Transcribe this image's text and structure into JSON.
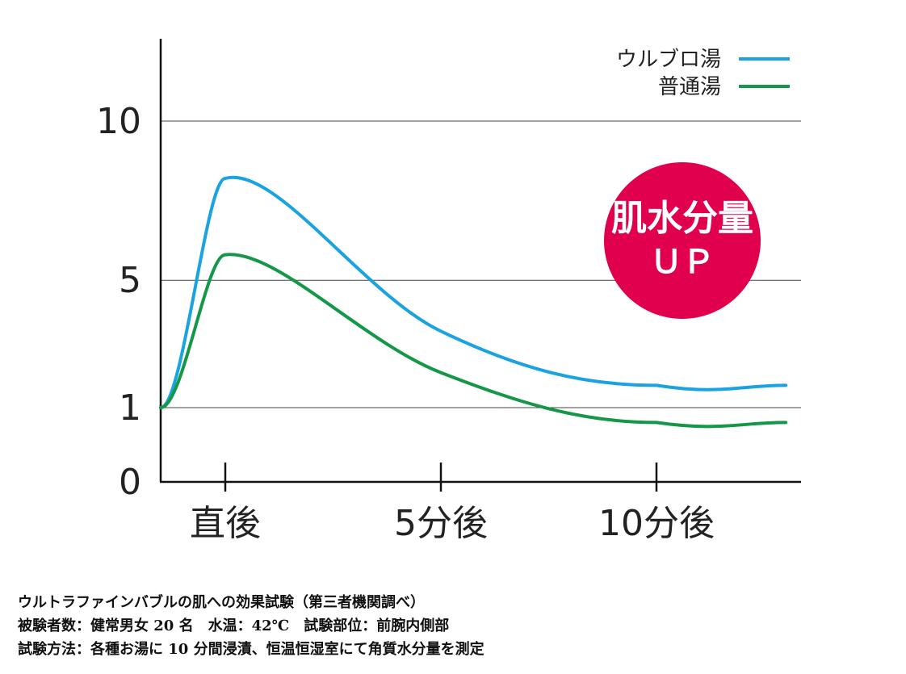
{
  "chart_data": {
    "type": "line",
    "categories": [
      "直後",
      "5分後",
      "10分後"
    ],
    "y_ticks": [
      "0",
      "1",
      "5",
      "10"
    ],
    "grid": "horizontal at 1, 5, 10",
    "legend_position": "top-right",
    "series": [
      {
        "name": "ウルブロ湯",
        "color": "#1aa3e0",
        "points": [
          [
            -0.3,
            1.0
          ],
          [
            0,
            8.2
          ],
          [
            1,
            3.4
          ],
          [
            2,
            1.7
          ],
          [
            2.6,
            1.7
          ]
        ]
      },
      {
        "name": "普通湯",
        "color": "#149746",
        "points": [
          [
            -0.3,
            1.0
          ],
          [
            0,
            5.8
          ],
          [
            1,
            2.1
          ],
          [
            2,
            0.8
          ],
          [
            2.6,
            0.8
          ]
        ]
      }
    ],
    "badge": {
      "line1": "肌水分量",
      "line2": "ＵＰ",
      "color": "#e0004d"
    }
  },
  "footnotes": {
    "line1": "ウルトラファインバブルの肌への効果試験（第三者機関調べ）",
    "line2": "被験者数：健常男女 20 名　水温：42℃　試験部位：前腕内側部",
    "line3": "試験方法：各種お湯に 10 分間浸漬、恒温恒湿室にて角質水分量を測定"
  }
}
